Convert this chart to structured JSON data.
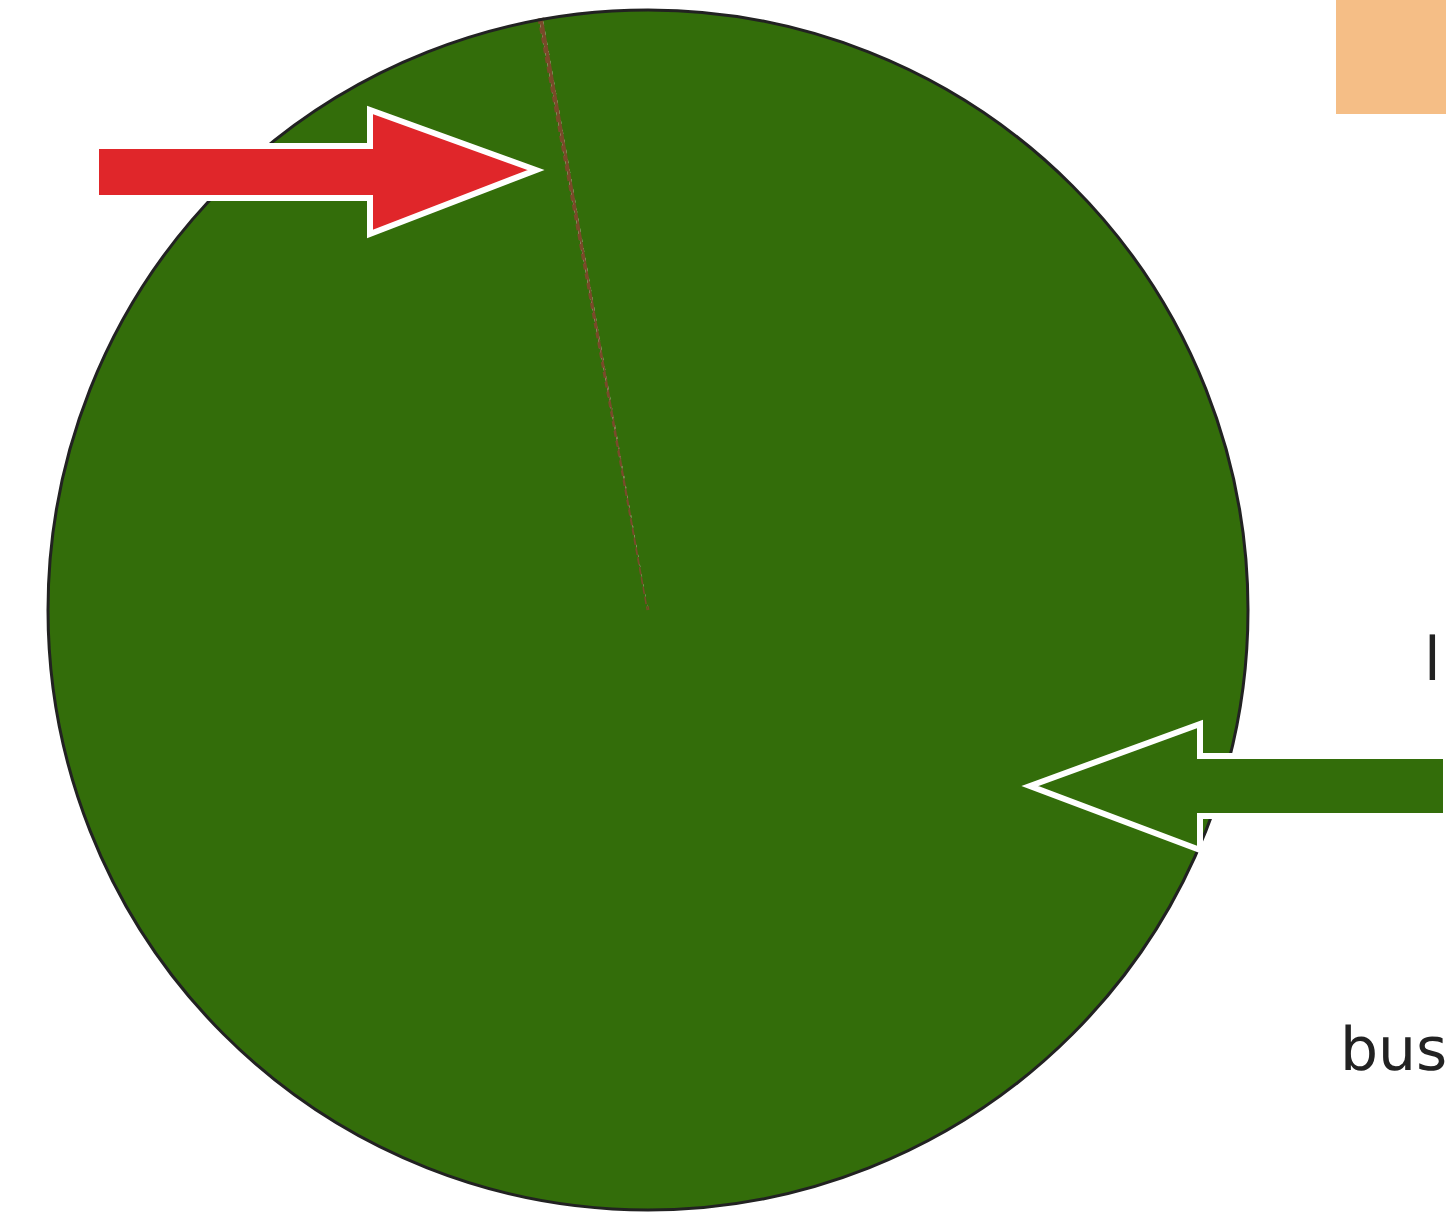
{
  "chart_data": {
    "type": "pie",
    "categories": [
      null,
      null,
      null
    ],
    "values": [
      97.1,
      0.1,
      2.8
    ],
    "colors": [
      "#336d0a",
      "#7a4a2a",
      "#336d0a"
    ],
    "annotations": [
      "l",
      "bus"
    ]
  }
}
